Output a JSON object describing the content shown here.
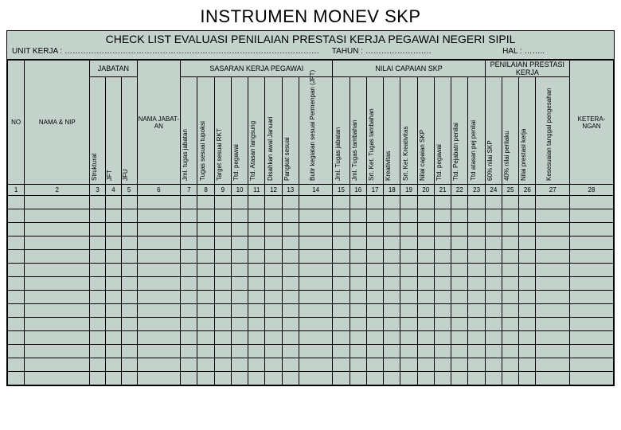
{
  "title": "INSTRUMEN MONEV SKP",
  "header": {
    "checklist": "CHECK LIST EVALUASI PENILAIAN PRESTASI KERJA PEGAWAI NEGERI SIPIL",
    "unit": "UNIT KERJA : ……………………………………………………………………………………",
    "tahun": "TAHUN : …………………….",
    "hal": "HAL : …….."
  },
  "groups": {
    "jabatan": "JABATAN",
    "sasaran": "SASARAN KERJA PEGAWAI",
    "nilai": "NILAI CAPAIAN SKP",
    "penilaian": "PENILAIAN PRESTASI KERJA"
  },
  "cols": {
    "no": "NO",
    "nama_nip": "NAMA & NIP",
    "struktural": "Struktural",
    "jft": "JFT",
    "jfu": "JFU",
    "nama_jabatan": "NAMA JABAT-AN",
    "jml_tugas": "Jml. tugas jabatan",
    "tugas_tupoksi": "Tugas sesuai tupoksi",
    "target_rkt": "Target sesuai RKT",
    "ttd_pegawai": "Ttd. pegawai",
    "ttd_atasan": "Ttd. Atasan langsung",
    "disahkan": "Disahkan awal Januari",
    "pangkat": "Pangkat sesuai",
    "butir": "Butir kegiatan sesuai Permenpan (JFT)",
    "jml_tugas_jab": "Jml. Tugas jabatan",
    "jml_tambahan": "Jml. Tugas tambahan",
    "srt_tambahan": "Srt. Ket. Tugas tambahan",
    "kreativitas": "Kreativitas",
    "srt_kreativitas": "Srt. Ket. Kreativitas",
    "nilai_capaian": "Nilai capaian SKP",
    "ttd_pegawai2": "Ttd. pegawai",
    "ttd_pejabat": "Ttd. Pejabatn penilai",
    "ttd_atasan_pej": "Ttd atasan pej penilai",
    "p60": "60% nilai SKP",
    "p40": "40% nilai perilaku",
    "nilai_prestasi": "Nilai prestasi kerja",
    "kesesuaian": "Kesesuaian tanggal pengesahan",
    "keterangan": "KETERA-NGAN"
  },
  "nums": [
    "1",
    "2",
    "3",
    "4",
    "5",
    "6",
    "7",
    "8",
    "9",
    "10",
    "11",
    "12",
    "13",
    "14",
    "15",
    "16",
    "17",
    "18",
    "19",
    "20",
    "21",
    "22",
    "23",
    "24",
    "25",
    "26",
    "27",
    "28"
  ],
  "blank_rows": 14,
  "colors": {
    "bg": "#c3d3cb",
    "border": "#000000"
  }
}
